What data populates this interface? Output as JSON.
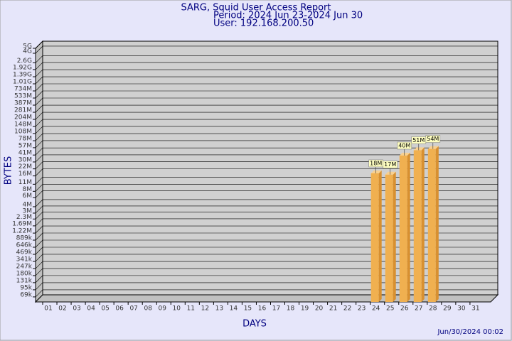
{
  "chart_data": {
    "type": "bar",
    "title": "SARG, Squid User Access Report",
    "subtitle": [
      "Period: 2024 Jun 23-2024 Jun 30",
      "User: 192.168.200.50"
    ],
    "xlabel": "DAYS",
    "ylabel": "BYTES",
    "annotation": "Jun/30/2024 00:02",
    "categories": [
      "01",
      "02",
      "03",
      "04",
      "05",
      "06",
      "07",
      "08",
      "09",
      "10",
      "11",
      "12",
      "13",
      "14",
      "15",
      "16",
      "17",
      "18",
      "19",
      "20",
      "21",
      "22",
      "23",
      "24",
      "25",
      "26",
      "27",
      "28",
      "29",
      "30",
      "31"
    ],
    "values": [
      null,
      null,
      null,
      null,
      null,
      null,
      null,
      null,
      null,
      null,
      null,
      null,
      null,
      null,
      null,
      null,
      null,
      null,
      null,
      null,
      null,
      null,
      null,
      18000000,
      17000000,
      40000000,
      51000000,
      54000000,
      null,
      null,
      null
    ],
    "value_labels": [
      null,
      null,
      null,
      null,
      null,
      null,
      null,
      null,
      null,
      null,
      null,
      null,
      null,
      null,
      null,
      null,
      null,
      null,
      null,
      null,
      null,
      null,
      null,
      "18M",
      "17M",
      "40M",
      "51M",
      "54M",
      null,
      null,
      null
    ],
    "color": "#f0b050",
    "log_scale": true,
    "grid": true,
    "ylim": [
      50000,
      5000000000
    ],
    "yticks": [
      {
        "value": 69000,
        "label": "69k"
      },
      {
        "value": 95000,
        "label": "95k"
      },
      {
        "value": 131000,
        "label": "131k"
      },
      {
        "value": 180000,
        "label": "180k"
      },
      {
        "value": 247000,
        "label": "247k"
      },
      {
        "value": 341000,
        "label": "341k"
      },
      {
        "value": 469000,
        "label": "469k"
      },
      {
        "value": 646000,
        "label": "646k"
      },
      {
        "value": 889000,
        "label": "889k"
      },
      {
        "value": 1220000,
        "label": "1.22M"
      },
      {
        "value": 1690000,
        "label": "1.69M"
      },
      {
        "value": 2300000,
        "label": "2.3M"
      },
      {
        "value": 3000000,
        "label": "3M"
      },
      {
        "value": 4000000,
        "label": "4M"
      },
      {
        "value": 6000000,
        "label": "6M"
      },
      {
        "value": 8000000,
        "label": "8M"
      },
      {
        "value": 11000000,
        "label": "11M"
      },
      {
        "value": 16000000,
        "label": "16M"
      },
      {
        "value": 22000000,
        "label": "22M"
      },
      {
        "value": 30000000,
        "label": "30M"
      },
      {
        "value": 41000000,
        "label": "41M"
      },
      {
        "value": 57000000,
        "label": "57M"
      },
      {
        "value": 78000000,
        "label": "78M"
      },
      {
        "value": 108000000,
        "label": "108M"
      },
      {
        "value": 148000000,
        "label": "148M"
      },
      {
        "value": 204000000,
        "label": "204M"
      },
      {
        "value": 281000000,
        "label": "281M"
      },
      {
        "value": 387000000,
        "label": "387M"
      },
      {
        "value": 533000000,
        "label": "533M"
      },
      {
        "value": 734000000,
        "label": "734M"
      },
      {
        "value": 1010000000,
        "label": "1.01G"
      },
      {
        "value": 1390000000,
        "label": "1.39G"
      },
      {
        "value": 1920000000,
        "label": "1.92G"
      },
      {
        "value": 2600000000,
        "label": "2.6G"
      },
      {
        "value": 4000000000,
        "label": "4G"
      },
      {
        "value": 5000000000,
        "label": "5G"
      }
    ]
  }
}
